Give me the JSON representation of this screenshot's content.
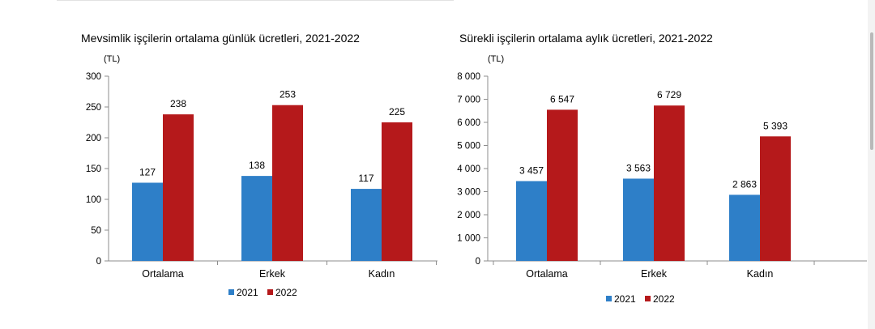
{
  "chart_data": [
    {
      "type": "bar",
      "title": "Mevsimlik işçilerin ortalama günlük ücretleri, 2021-2022",
      "unit": "(TL)",
      "categories": [
        "Ortalama",
        "Erkek",
        "Kadın"
      ],
      "series": [
        {
          "name": "2021",
          "values": [
            127,
            138,
            117
          ],
          "labels": [
            "127",
            "138",
            "117"
          ],
          "color": "#2e7fc8"
        },
        {
          "name": "2022",
          "values": [
            238,
            253,
            225
          ],
          "labels": [
            "238",
            "253",
            "225"
          ],
          "color": "#b5191b"
        }
      ],
      "ylim": [
        0,
        300
      ],
      "yticks": [
        0,
        50,
        100,
        150,
        200,
        250,
        300
      ],
      "ytick_labels": [
        "0",
        "50",
        "100",
        "150",
        "200",
        "250",
        "300"
      ],
      "grid": false,
      "legend": "bottom-center"
    },
    {
      "type": "bar",
      "title": "Sürekli işçilerin ortalama aylık ücretleri, 2021-2022",
      "unit": "(TL)",
      "categories": [
        "Ortalama",
        "Erkek",
        "Kadın"
      ],
      "series": [
        {
          "name": "2021",
          "values": [
            3457,
            3563,
            2863
          ],
          "labels": [
            "3 457",
            "3 563",
            "2 863"
          ],
          "color": "#2e7fc8"
        },
        {
          "name": "2022",
          "values": [
            6547,
            6729,
            5393
          ],
          "labels": [
            "6 547",
            "6 729",
            "5 393"
          ],
          "color": "#b5191b"
        }
      ],
      "ylim": [
        0,
        8000
      ],
      "yticks": [
        0,
        1000,
        2000,
        3000,
        4000,
        5000,
        6000,
        7000,
        8000
      ],
      "ytick_labels": [
        "0",
        "1 000",
        "2 000",
        "3 000",
        "4 000",
        "5 000",
        "6 000",
        "7 000",
        "8 000"
      ],
      "grid": false,
      "legend": "bottom-center"
    }
  ]
}
